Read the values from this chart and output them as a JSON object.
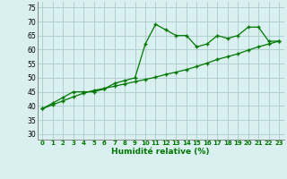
{
  "x": [
    0,
    1,
    2,
    3,
    4,
    5,
    6,
    7,
    8,
    9,
    10,
    11,
    12,
    13,
    14,
    15,
    16,
    17,
    18,
    19,
    20,
    21,
    22,
    23
  ],
  "y_line": [
    39,
    41,
    43,
    45,
    45,
    45,
    46,
    48,
    49,
    50,
    62,
    69,
    67,
    65,
    65,
    61,
    62,
    65,
    64,
    65,
    68,
    68,
    63,
    63
  ],
  "y_trend": [
    39,
    40.4,
    41.8,
    43.2,
    44.5,
    45.5,
    46.2,
    47.0,
    47.8,
    48.6,
    49.4,
    50.2,
    51.2,
    52.0,
    52.9,
    54.0,
    55.2,
    56.5,
    57.5,
    58.5,
    59.8,
    61.0,
    62.0,
    63.0
  ],
  "xlabel": "Humidité relative (%)",
  "ylim": [
    28,
    77
  ],
  "xlim": [
    -0.5,
    23.5
  ],
  "yticks": [
    30,
    35,
    40,
    45,
    50,
    55,
    60,
    65,
    70,
    75
  ],
  "xticks": [
    0,
    1,
    2,
    3,
    4,
    5,
    6,
    7,
    8,
    9,
    10,
    11,
    12,
    13,
    14,
    15,
    16,
    17,
    18,
    19,
    20,
    21,
    22,
    23
  ],
  "line_color": "#007700",
  "trend_color": "#007700",
  "bg_color": "#daf0f0",
  "grid_color": "#aacccc",
  "marker": "+",
  "marker_size": 3.5,
  "tick_label_color": "#007700",
  "xlabel_color": "#007700"
}
